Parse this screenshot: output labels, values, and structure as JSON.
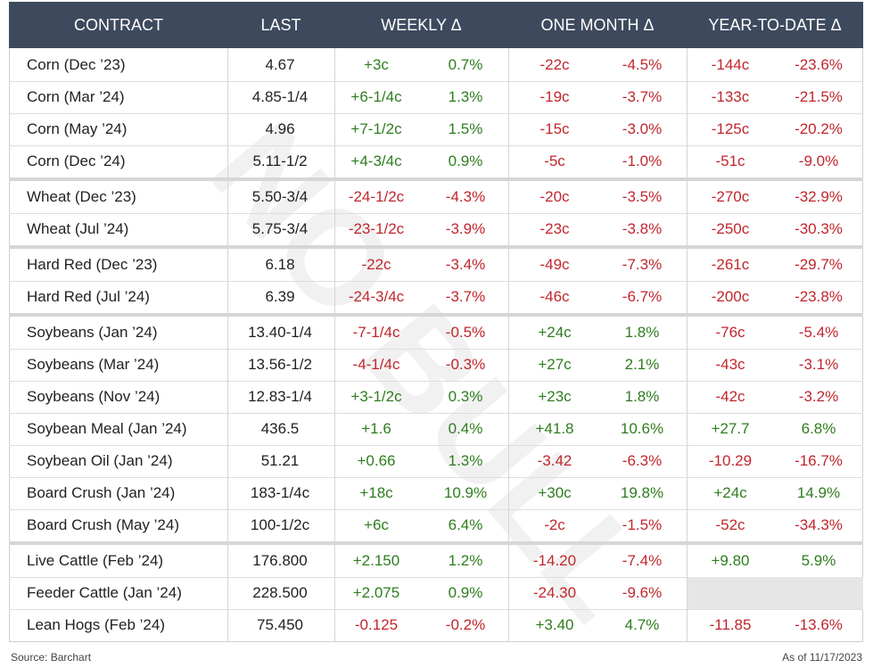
{
  "header": [
    "CONTRACT",
    "LAST",
    "WEEKLY Δ",
    "ONE MONTH Δ",
    "YEAR-TO-DATE Δ"
  ],
  "groups": [
    {
      "rows": [
        [
          "Corn (Dec ’23)",
          "4.67",
          "+3c",
          "0.7%",
          "-22c",
          "-4.5%",
          "-144c",
          "-23.6%"
        ],
        [
          "Corn (Mar ’24)",
          "4.85-1/4",
          "+6-1/4c",
          "1.3%",
          "-19c",
          "-3.7%",
          "-133c",
          "-21.5%"
        ],
        [
          "Corn (May ’24)",
          "4.96",
          "+7-1/2c",
          "1.5%",
          "-15c",
          "-3.0%",
          "-125c",
          "-20.2%"
        ],
        [
          "Corn (Dec ’24)",
          "5.11-1/2",
          "+4-3/4c",
          "0.9%",
          "-5c",
          "-1.0%",
          "-51c",
          "-9.0%"
        ]
      ]
    },
    {
      "rows": [
        [
          "Wheat (Dec ’23)",
          "5.50-3/4",
          "-24-1/2c",
          "-4.3%",
          "-20c",
          "-3.5%",
          "-270c",
          "-32.9%"
        ],
        [
          "Wheat (Jul ’24)",
          "5.75-3/4",
          "-23-1/2c",
          "-3.9%",
          "-23c",
          "-3.8%",
          "-250c",
          "-30.3%"
        ]
      ]
    },
    {
      "rows": [
        [
          "Hard Red (Dec ’23)",
          "6.18",
          "-22c",
          "-3.4%",
          "-49c",
          "-7.3%",
          "-261c",
          "-29.7%"
        ],
        [
          "Hard Red (Jul ’24)",
          "6.39",
          "-24-3/4c",
          "-3.7%",
          "-46c",
          "-6.7%",
          "-200c",
          "-23.8%"
        ]
      ]
    },
    {
      "rows": [
        [
          "Soybeans (Jan ’24)",
          "13.40-1/4",
          "-7-1/4c",
          "-0.5%",
          "+24c",
          "1.8%",
          "-76c",
          "-5.4%"
        ],
        [
          "Soybeans (Mar ’24)",
          "13.56-1/2",
          "-4-1/4c",
          "-0.3%",
          "+27c",
          "2.1%",
          "-43c",
          "-3.1%"
        ],
        [
          "Soybeans (Nov ’24)",
          "12.83-1/4",
          "+3-1/2c",
          "0.3%",
          "+23c",
          "1.8%",
          "-42c",
          "-3.2%"
        ],
        [
          "Soybean Meal (Jan ’24)",
          "436.5",
          "+1.6",
          "0.4%",
          "+41.8",
          "10.6%",
          "+27.7",
          "6.8%"
        ],
        [
          "Soybean Oil (Jan ’24)",
          "51.21",
          "+0.66",
          "1.3%",
          "-3.42",
          "-6.3%",
          "-10.29",
          "-16.7%"
        ],
        [
          "Board Crush (Jan ’24)",
          "183-1/4c",
          "+18c",
          "10.9%",
          "+30c",
          "19.8%",
          "+24c",
          "14.9%"
        ],
        [
          "Board Crush (May ’24)",
          "100-1/2c",
          "+6c",
          "6.4%",
          "-2c",
          "-1.5%",
          "-52c",
          "-34.3%"
        ]
      ]
    },
    {
      "rows": [
        [
          "Live Cattle (Feb ’24)",
          "176.800",
          "+2.150",
          "1.2%",
          "-14.20",
          "-7.4%",
          "+9.80",
          "5.9%"
        ],
        [
          "Feeder Cattle (Jan ’24)",
          "228.500",
          "+2.075",
          "0.9%",
          "-24.30",
          "-9.6%",
          null,
          null
        ],
        [
          "Lean Hogs (Feb ’24)",
          "75.450",
          "-0.125",
          "-0.2%",
          "+3.40",
          "4.7%",
          "-11.85",
          "-13.6%"
        ]
      ]
    }
  ],
  "watermark": "NO BULL",
  "source": "Source: Barchart",
  "as_of": "As of 11/17/2023"
}
